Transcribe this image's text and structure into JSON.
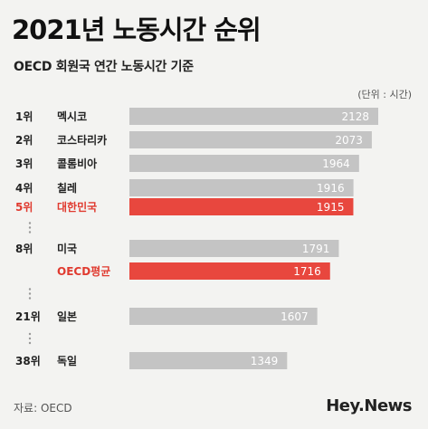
{
  "header": {
    "title": "2021년 노동시간 순위",
    "subtitle": "OECD 회원국 연간 노동시간 기준",
    "unit": "(단위 : 시간)"
  },
  "footer": {
    "source": "자료: OECD",
    "brand": "Hey.News"
  },
  "colors": {
    "bar_default": "#c4c4c4",
    "bar_highlight": "#e8473e",
    "text_highlight": "#e03a2f",
    "gap_dots": "#999999"
  },
  "chart_data": {
    "type": "bar",
    "orientation": "horizontal",
    "ranks": [
      "1위",
      "2위",
      "3위",
      "4위",
      "5위",
      "8위",
      "",
      "21위",
      "38위"
    ],
    "categories": [
      "멕시코",
      "코스타리카",
      "콜롬비아",
      "칠레",
      "대한민국",
      "미국",
      "OECD평균",
      "일본",
      "독일"
    ],
    "values": [
      2128,
      2073,
      1964,
      1916,
      1915,
      1791,
      1716,
      1607,
      1349
    ],
    "highlighted": [
      false,
      false,
      false,
      false,
      true,
      false,
      true,
      false,
      false
    ],
    "gap_after": [
      false,
      false,
      false,
      false,
      true,
      false,
      true,
      true,
      false
    ],
    "unit": "시간",
    "grid": false,
    "legend": "none"
  }
}
